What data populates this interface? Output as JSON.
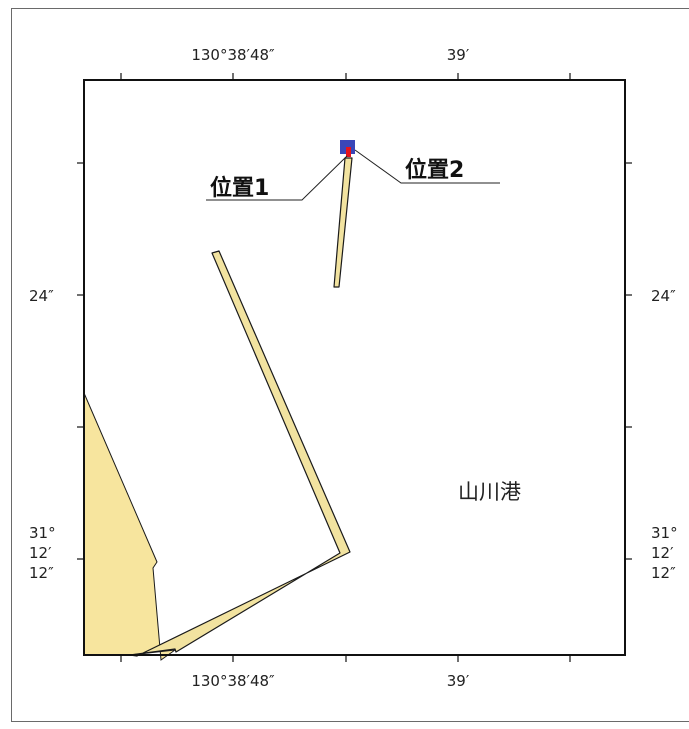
{
  "map": {
    "top_axis": {
      "label_left": "130°38′48″",
      "label_right": "39′"
    },
    "bottom_axis": {
      "label_left": "130°38′48″",
      "label_right": "39′"
    },
    "left_axis": {
      "label_upper": "24″",
      "label_lower": [
        "31°",
        "12′",
        "12″"
      ]
    },
    "right_axis": {
      "label_upper": "24″",
      "label_lower": [
        "31°",
        "12′",
        "12″"
      ]
    },
    "markers": {
      "position1": "位置1",
      "position2": "位置2"
    },
    "place_name": "山川港",
    "colors": {
      "land": "#f7e59e",
      "breakwater": "#f2e3a0",
      "outline": "#1a1a1a",
      "marker_blue": "#3a46b8",
      "marker_red": "#e5131c"
    }
  }
}
